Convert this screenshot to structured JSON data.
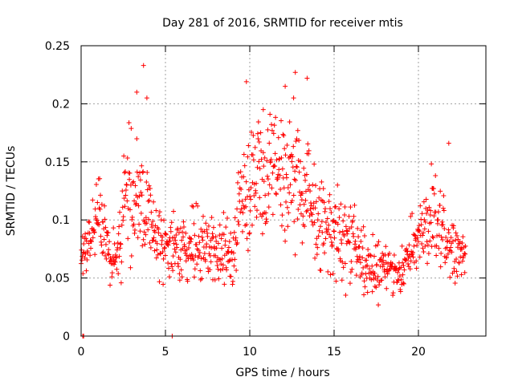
{
  "chart_data": {
    "type": "scatter",
    "title": "Day 281 of 2016, SRMTID for receiver mtis",
    "xlabel": "GPS time / hours",
    "ylabel": "SRMTID / TECUs",
    "xlim": [
      0,
      24
    ],
    "ylim": [
      0,
      0.25
    ],
    "xticks": [
      0,
      5,
      10,
      15,
      20
    ],
    "yticks": [
      0,
      0.05,
      0.1,
      0.15,
      0.2,
      0.25
    ],
    "xtick_labels": [
      "0",
      "5",
      "10",
      "15",
      "20"
    ],
    "ytick_labels": [
      "0",
      "0.05",
      "0.1",
      "0.15",
      "0.2",
      "0.25"
    ],
    "grid": true,
    "marker": "+",
    "series": [
      {
        "name": "SRMTID",
        "color": "#ff0000",
        "envelope_note": "approximate per-hour value range of the dense point cloud, one entry per hour",
        "hourly_envelope": [
          {
            "hour": 0,
            "y": [
              0.04,
              0.09
            ]
          },
          {
            "hour": 1,
            "y": [
              0.05,
              0.16
            ]
          },
          {
            "hour": 2,
            "y": [
              0.025,
              0.1
            ]
          },
          {
            "hour": 3,
            "y": [
              0.03,
              0.23
            ]
          },
          {
            "hour": 4,
            "y": [
              0.05,
              0.15
            ]
          },
          {
            "hour": 5,
            "y": [
              0.03,
              0.12
            ]
          },
          {
            "hour": 6,
            "y": [
              0.035,
              0.12
            ]
          },
          {
            "hour": 7,
            "y": [
              0.035,
              0.13
            ]
          },
          {
            "hour": 8,
            "y": [
              0.03,
              0.11
            ]
          },
          {
            "hour": 9,
            "y": [
              0.035,
              0.12
            ]
          },
          {
            "hour": 10,
            "y": [
              0.05,
              0.22
            ]
          },
          {
            "hour": 11,
            "y": [
              0.06,
              0.2
            ]
          },
          {
            "hour": 12,
            "y": [
              0.06,
              0.225
            ]
          },
          {
            "hour": 13,
            "y": [
              0.05,
              0.2
            ]
          },
          {
            "hour": 14,
            "y": [
              0.04,
              0.17
            ]
          },
          {
            "hour": 15,
            "y": [
              0.035,
              0.14
            ]
          },
          {
            "hour": 16,
            "y": [
              0.025,
              0.14
            ]
          },
          {
            "hour": 17,
            "y": [
              0.02,
              0.09
            ]
          },
          {
            "hour": 18,
            "y": [
              0.025,
              0.1
            ]
          },
          {
            "hour": 19,
            "y": [
              0.03,
              0.08
            ]
          },
          {
            "hour": 20,
            "y": [
              0.045,
              0.13
            ]
          },
          {
            "hour": 21,
            "y": [
              0.03,
              0.16
            ]
          },
          {
            "hour": 22,
            "y": [
              0.04,
              0.12
            ]
          }
        ],
        "outliers": [
          {
            "x": 0.1,
            "y": 0.0
          },
          {
            "x": 0.15,
            "y": 0.0
          },
          {
            "x": 5.4,
            "y": 0.0
          },
          {
            "x": 3.7,
            "y": 0.233
          },
          {
            "x": 3.3,
            "y": 0.21
          },
          {
            "x": 3.9,
            "y": 0.205
          },
          {
            "x": 9.8,
            "y": 0.219
          },
          {
            "x": 12.1,
            "y": 0.215
          },
          {
            "x": 12.7,
            "y": 0.227
          },
          {
            "x": 13.4,
            "y": 0.222
          },
          {
            "x": 12.6,
            "y": 0.205
          },
          {
            "x": 10.8,
            "y": 0.195
          },
          {
            "x": 21.8,
            "y": 0.166
          }
        ]
      }
    ]
  }
}
